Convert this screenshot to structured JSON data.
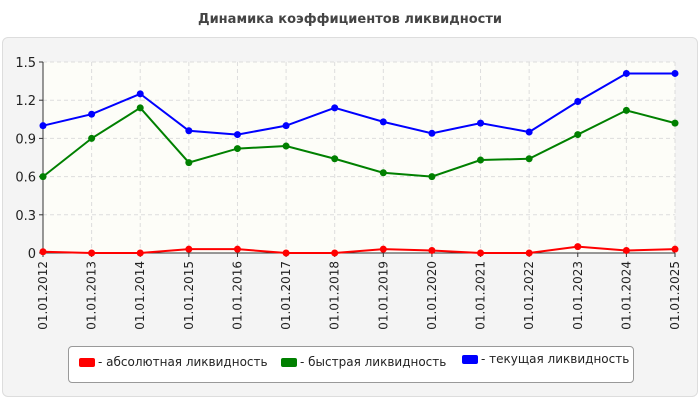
{
  "chart_data": {
    "type": "line",
    "title": "Динамика коэффициентов ликвидности",
    "categories": [
      "01.01.2012",
      "01.01.2013",
      "01.01.2014",
      "01.01.2015",
      "01.01.2016",
      "01.01.2017",
      "01.01.2018",
      "01.01.2019",
      "01.01.2020",
      "01.01.2021",
      "01.01.2022",
      "01.01.2023",
      "01.01.2024",
      "01.01.2025"
    ],
    "ylim": [
      0,
      1.5
    ],
    "yticks": [
      "0",
      "0.3",
      "0.6",
      "0.9",
      "1.2",
      "1.5"
    ],
    "grid": true,
    "legend_position": "bottom",
    "series": [
      {
        "name": "- абсолютная ликвидность",
        "color": "#ff0000",
        "values": [
          0.01,
          0.0,
          0.0,
          0.03,
          0.03,
          0.0,
          0.0,
          0.03,
          0.02,
          0.0,
          0.0,
          0.05,
          0.02,
          0.03
        ]
      },
      {
        "name": "- быстрая ликвидность",
        "color": "#008000",
        "values": [
          0.6,
          0.9,
          1.14,
          0.71,
          0.82,
          0.84,
          0.74,
          0.63,
          0.6,
          0.73,
          0.74,
          0.93,
          1.12,
          1.02
        ]
      },
      {
        "name": "- текущая ликвидность",
        "color": "#0000ff",
        "values": [
          1.0,
          1.09,
          1.25,
          0.96,
          0.93,
          1.0,
          1.14,
          1.03,
          0.94,
          1.02,
          0.95,
          1.19,
          1.41,
          1.41
        ]
      }
    ]
  }
}
